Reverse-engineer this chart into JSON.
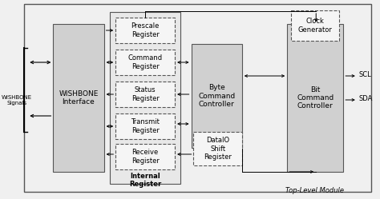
{
  "bg_color": "#f0f0f0",
  "fig_bg": "#f0f0f0",
  "title": "Top-Level Module",
  "wishbone_signals_label": "WISHBONE\nSignals",
  "wishbone_interface_label": "WISHBONE\nInterface",
  "internal_register_label": "Internal\nRegister",
  "registers": [
    "Prescale\nRegister",
    "Command\nRegister",
    "Status\nRegister",
    "Transmit\nRegister",
    "Receive\nRegister"
  ],
  "byte_controller_label": "Byte\nCommand\nController",
  "bit_controller_label": "Bit\nCommand\nController",
  "clock_gen_label": "Clock\nGenerator",
  "dataio_label": "DataIO\nShift\nRegister",
  "scl_label": "SCL",
  "sda_label": "SDA",
  "solid_fill": "#d3d3d3",
  "dashed_fill": "#ffffff",
  "box_edge_solid": "#555555",
  "box_edge_dashed": "#555555",
  "outer_border_color": "#555555"
}
